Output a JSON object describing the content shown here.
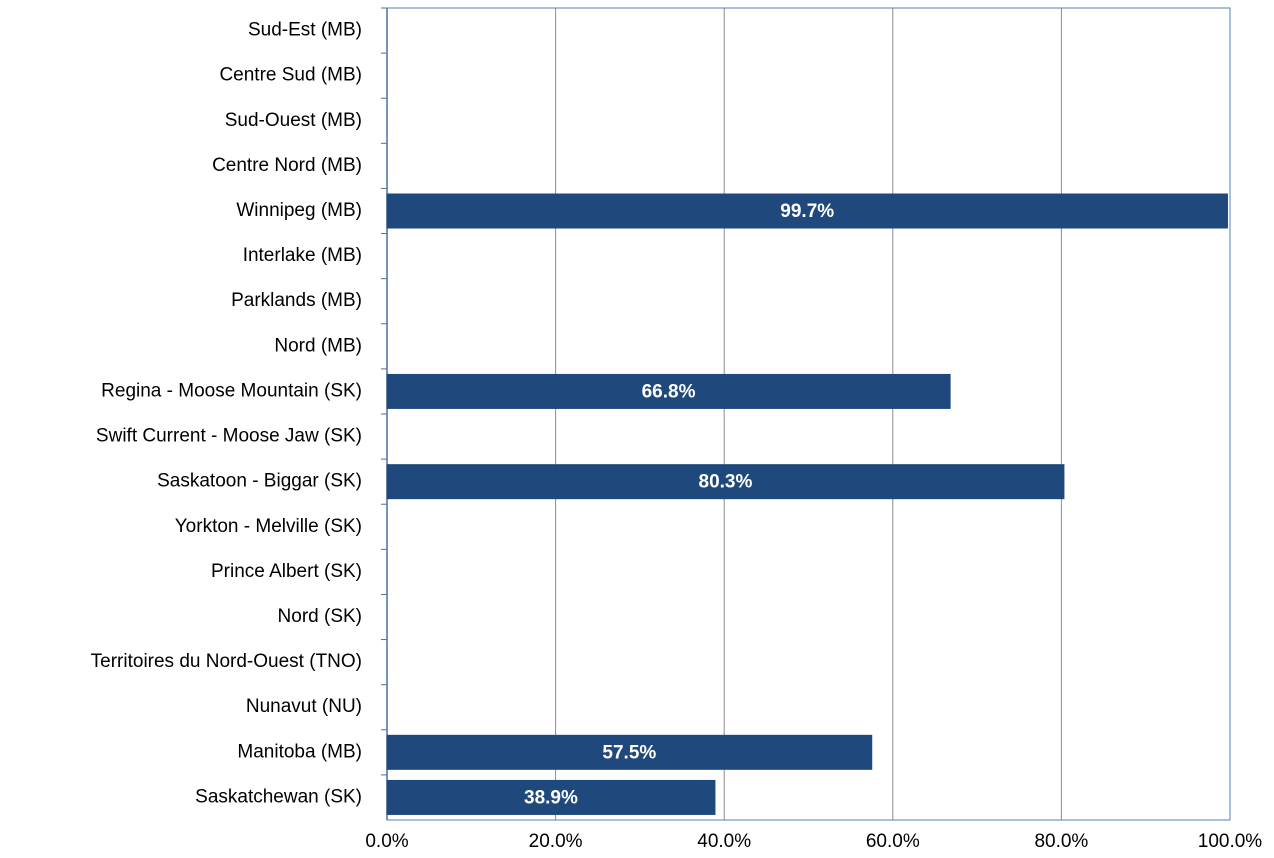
{
  "chart_data": {
    "type": "bar",
    "orientation": "horizontal",
    "categories": [
      "Sud-Est (MB)",
      "Centre Sud (MB)",
      "Sud-Ouest (MB)",
      "Centre Nord (MB)",
      "Winnipeg (MB)",
      "Interlake (MB)",
      "Parklands (MB)",
      "Nord (MB)",
      "Regina - Moose Mountain (SK)",
      "Swift Current - Moose Jaw (SK)",
      "Saskatoon - Biggar (SK)",
      "Yorkton - Melville (SK)",
      "Prince Albert (SK)",
      "Nord (SK)",
      "Territoires du Nord-Ouest (TNO)",
      "Nunavut (NU)",
      "Manitoba (MB)",
      "Saskatchewan (SK)"
    ],
    "values": [
      0,
      0,
      0,
      0,
      99.7,
      0,
      0,
      0,
      66.8,
      0,
      80.3,
      0,
      0,
      0,
      0,
      0,
      57.5,
      38.9
    ],
    "value_labels": [
      null,
      null,
      null,
      null,
      "99.7%",
      null,
      null,
      null,
      "66.8%",
      null,
      "80.3%",
      null,
      null,
      null,
      null,
      null,
      "57.5%",
      "38.9%"
    ],
    "color": "#1f497d",
    "xlim": [
      0,
      100
    ],
    "xticks": [
      {
        "value": 0,
        "label": "0.0%"
      },
      {
        "value": 20,
        "label": "20.0%"
      },
      {
        "value": 40,
        "label": "40.0%"
      },
      {
        "value": 60,
        "label": "60.0%"
      },
      {
        "value": 80,
        "label": "80.0%"
      },
      {
        "value": 100,
        "label": "100.0%"
      }
    ],
    "grid": true
  }
}
